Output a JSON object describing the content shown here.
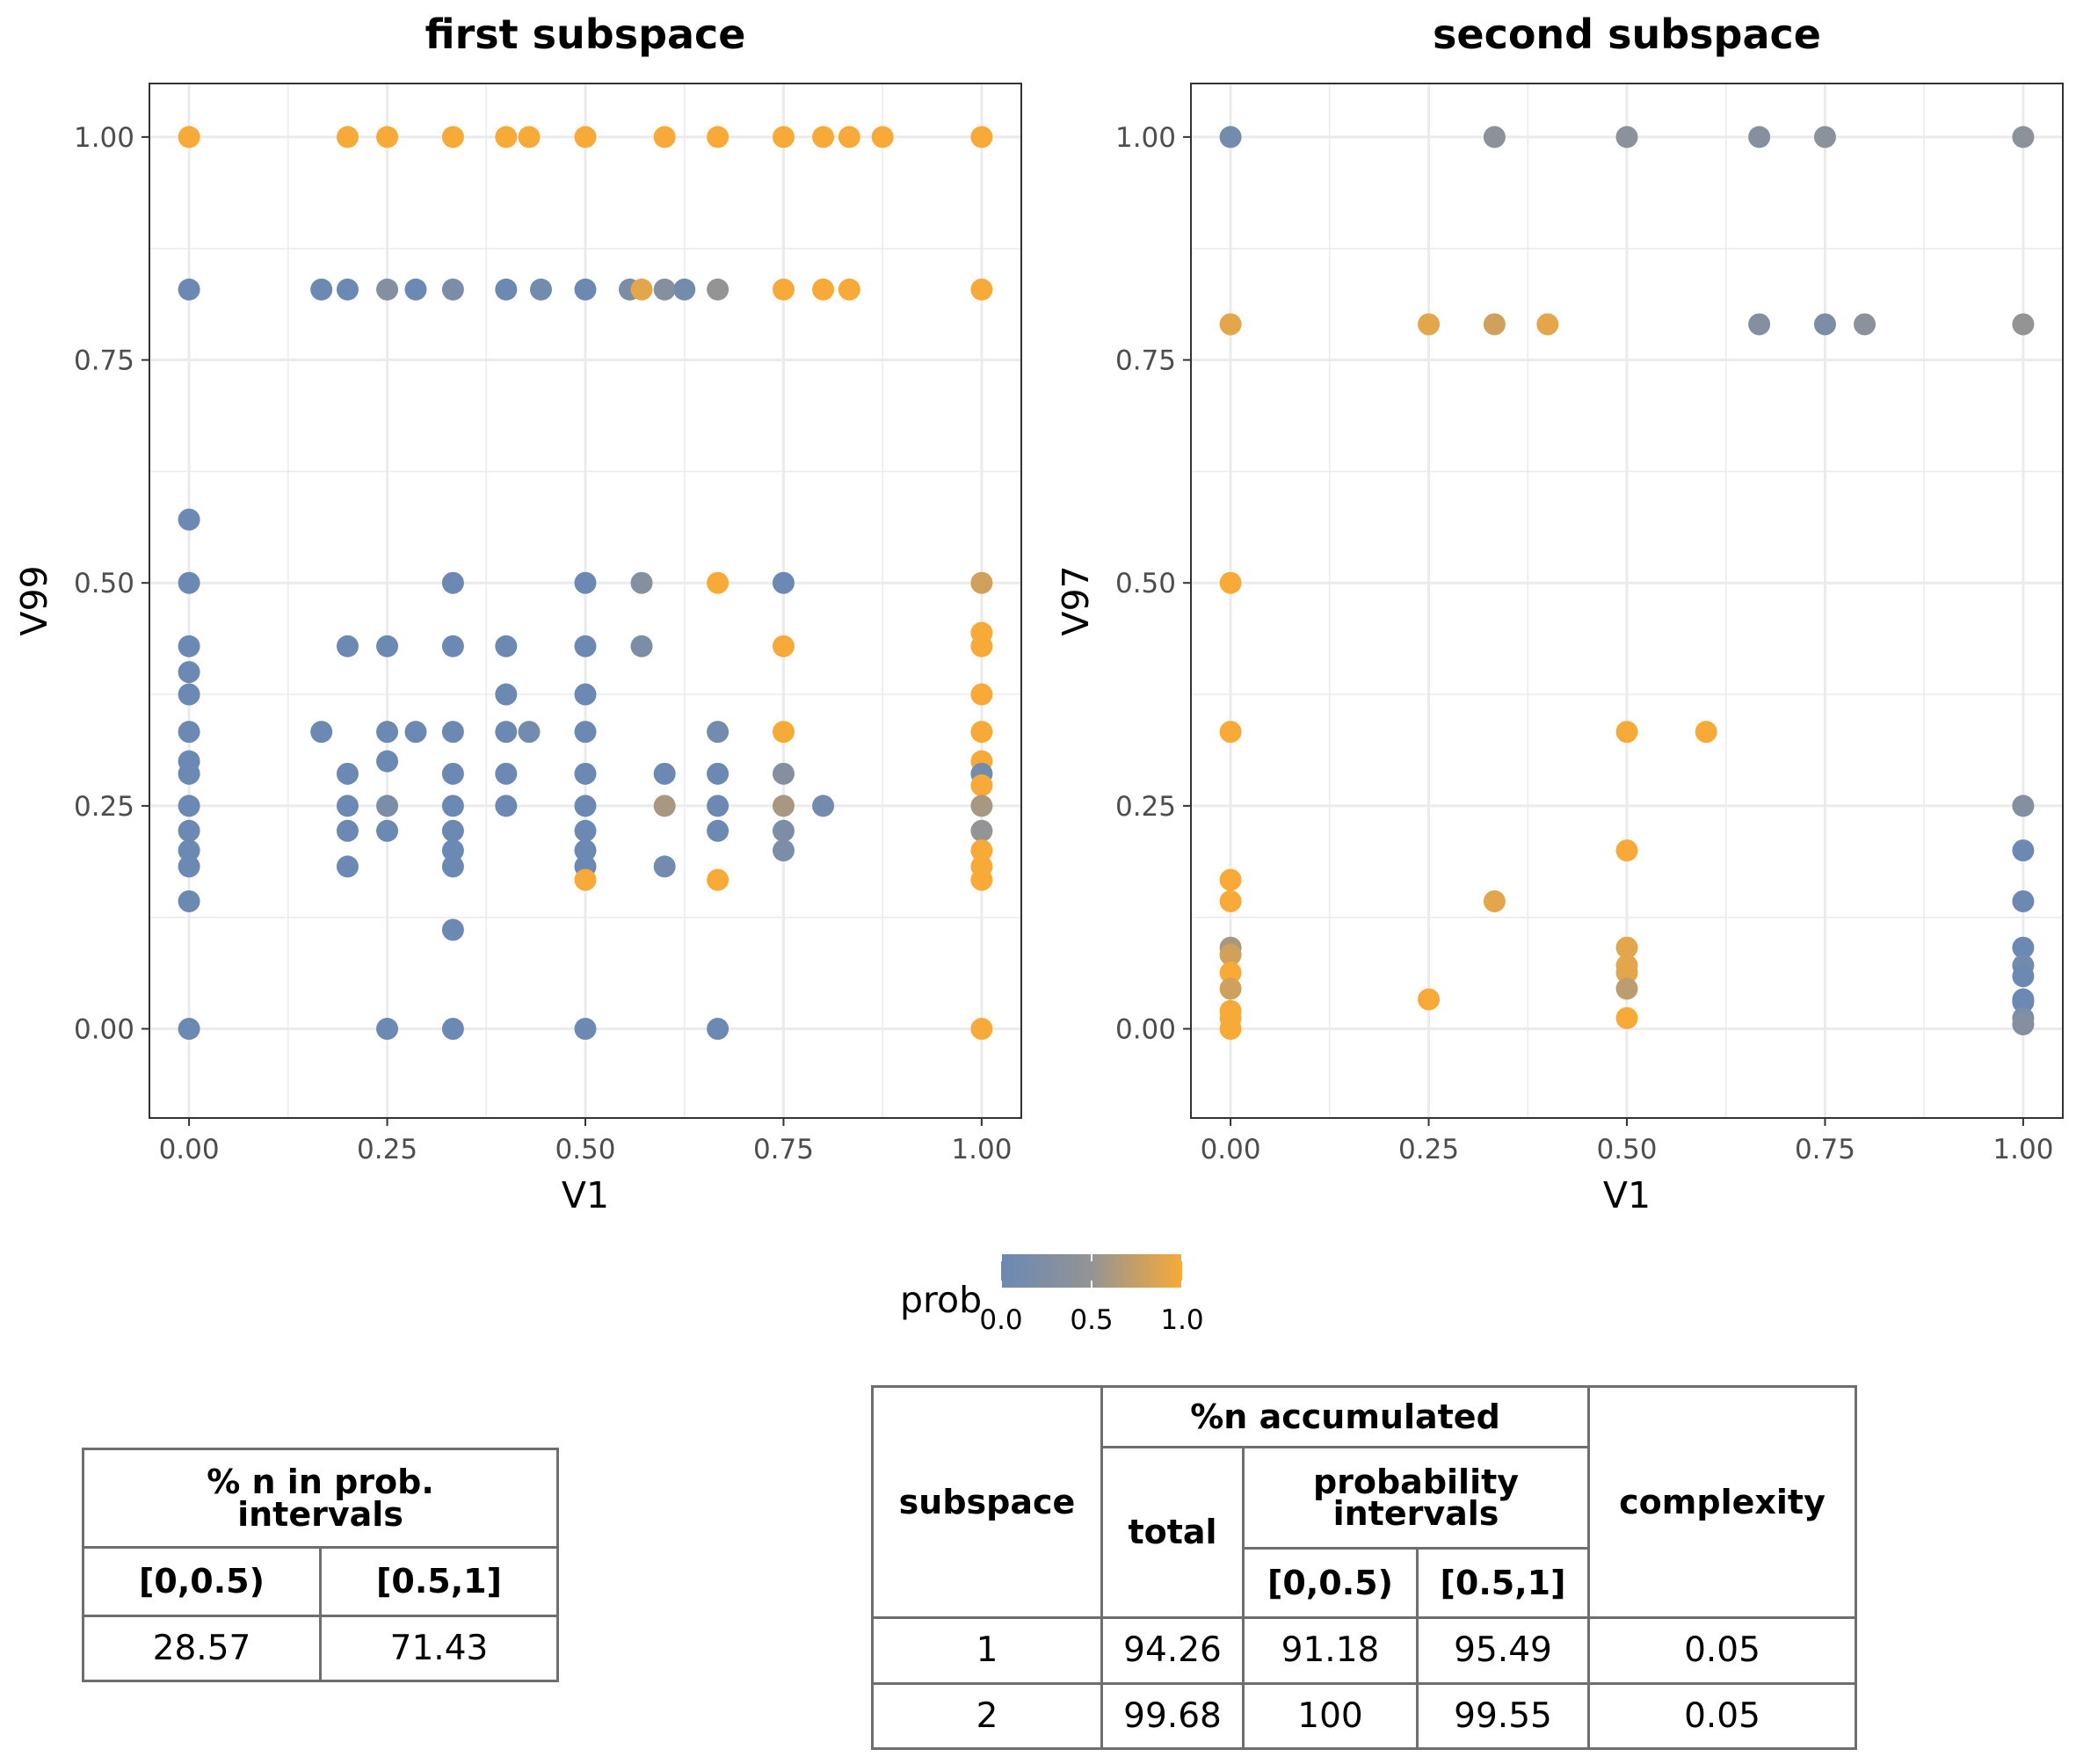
{
  "colors": {
    "low": "#6b89b3",
    "mid": "#949494",
    "high": "#f7aa38",
    "grid": "#ebebeb",
    "panel_border": "#333333",
    "table_line": "#6e6e6e"
  },
  "chart_data": [
    {
      "type": "scatter",
      "title": "first subspace",
      "xlabel": "V1",
      "ylabel": "V99",
      "xlim": [
        -0.05,
        1.05
      ],
      "ylim": [
        -0.1,
        1.06
      ],
      "xticks": [
        0,
        0.25,
        0.5,
        0.75,
        1
      ],
      "xtick_labels": [
        "0.00",
        "0.25",
        "0.50",
        "0.75",
        "1.00"
      ],
      "yticks": [
        0,
        0.25,
        0.5,
        0.75,
        1
      ],
      "ytick_labels": [
        "0.00",
        "0.25",
        "0.50",
        "0.75",
        "1.00"
      ],
      "grid": true,
      "color_variable": "prob",
      "points": [
        [
          0,
          1,
          1
        ],
        [
          0.2,
          1,
          1
        ],
        [
          0.25,
          1,
          1
        ],
        [
          0.333,
          1,
          1
        ],
        [
          0.4,
          1,
          1
        ],
        [
          0.429,
          1,
          1
        ],
        [
          0.5,
          1,
          1
        ],
        [
          0.6,
          1,
          1
        ],
        [
          0.667,
          1,
          1
        ],
        [
          0.75,
          1,
          1
        ],
        [
          0.8,
          1,
          1
        ],
        [
          0.833,
          1,
          1
        ],
        [
          0.875,
          1,
          1
        ],
        [
          1,
          1,
          1
        ],
        [
          0,
          0.829,
          0
        ],
        [
          0.167,
          0.829,
          0
        ],
        [
          0.2,
          0.829,
          0
        ],
        [
          0.25,
          0.829,
          0.3
        ],
        [
          0.286,
          0.829,
          0
        ],
        [
          0.333,
          0.829,
          0.2
        ],
        [
          0.4,
          0.829,
          0
        ],
        [
          0.444,
          0.829,
          0.1
        ],
        [
          0.5,
          0.829,
          0
        ],
        [
          0.556,
          0.829,
          0.2
        ],
        [
          0.571,
          0.829,
          0.9
        ],
        [
          0.6,
          0.829,
          0.3
        ],
        [
          0.625,
          0.829,
          0.1
        ],
        [
          0.667,
          0.829,
          0.5
        ],
        [
          0.75,
          0.829,
          1
        ],
        [
          0.8,
          0.829,
          1
        ],
        [
          0.833,
          0.829,
          1
        ],
        [
          1,
          0.829,
          1
        ],
        [
          0,
          0.571,
          0
        ],
        [
          0,
          0.5,
          0
        ],
        [
          0.333,
          0.5,
          0
        ],
        [
          0.5,
          0.5,
          0
        ],
        [
          0.571,
          0.5,
          0.3
        ],
        [
          0.667,
          0.5,
          1
        ],
        [
          0.75,
          0.5,
          0
        ],
        [
          1,
          0.5,
          0.8
        ],
        [
          1,
          0.444,
          1
        ],
        [
          0,
          0.429,
          0
        ],
        [
          0.2,
          0.429,
          0
        ],
        [
          0.25,
          0.429,
          0
        ],
        [
          0.333,
          0.429,
          0
        ],
        [
          0.4,
          0.429,
          0
        ],
        [
          0.5,
          0.429,
          0
        ],
        [
          0.571,
          0.429,
          0.2
        ],
        [
          0.75,
          0.429,
          1
        ],
        [
          1,
          0.429,
          1
        ],
        [
          0,
          0.4,
          0
        ],
        [
          0,
          0.375,
          0
        ],
        [
          0.4,
          0.375,
          0
        ],
        [
          0.5,
          0.375,
          0
        ],
        [
          1,
          0.375,
          1
        ],
        [
          0,
          0.333,
          0
        ],
        [
          0.167,
          0.333,
          0
        ],
        [
          0.25,
          0.333,
          0
        ],
        [
          0.286,
          0.333,
          0
        ],
        [
          0.333,
          0.333,
          0
        ],
        [
          0.4,
          0.333,
          0
        ],
        [
          0.429,
          0.333,
          0.1
        ],
        [
          0.5,
          0.333,
          0
        ],
        [
          0.667,
          0.333,
          0.1
        ],
        [
          0.75,
          0.333,
          1
        ],
        [
          1,
          0.333,
          1
        ],
        [
          0,
          0.3,
          0
        ],
        [
          0.25,
          0.3,
          0
        ],
        [
          1,
          0.3,
          1
        ],
        [
          0,
          0.286,
          0
        ],
        [
          0.2,
          0.286,
          0
        ],
        [
          0.333,
          0.286,
          0
        ],
        [
          0.4,
          0.286,
          0
        ],
        [
          0.5,
          0.286,
          0
        ],
        [
          0.6,
          0.286,
          0
        ],
        [
          0.667,
          0.286,
          0
        ],
        [
          0.75,
          0.286,
          0.3
        ],
        [
          1,
          0.286,
          0.1
        ],
        [
          1,
          0.273,
          1
        ],
        [
          0,
          0.25,
          0
        ],
        [
          0.2,
          0.25,
          0
        ],
        [
          0.25,
          0.25,
          0.2
        ],
        [
          0.333,
          0.25,
          0
        ],
        [
          0.4,
          0.25,
          0
        ],
        [
          0.5,
          0.25,
          0
        ],
        [
          0.6,
          0.25,
          0.6
        ],
        [
          0.667,
          0.25,
          0
        ],
        [
          0.75,
          0.25,
          0.6
        ],
        [
          0.8,
          0.25,
          0.1
        ],
        [
          1,
          0.25,
          0.6
        ],
        [
          0,
          0.222,
          0
        ],
        [
          0.2,
          0.222,
          0
        ],
        [
          0.25,
          0.222,
          0
        ],
        [
          0.333,
          0.222,
          0
        ],
        [
          0.5,
          0.222,
          0
        ],
        [
          0.667,
          0.222,
          0
        ],
        [
          0.75,
          0.222,
          0.2
        ],
        [
          1,
          0.222,
          0.5
        ],
        [
          0,
          0.2,
          0
        ],
        [
          0.333,
          0.2,
          0
        ],
        [
          0.5,
          0.2,
          0
        ],
        [
          0.75,
          0.2,
          0.2
        ],
        [
          1,
          0.2,
          1
        ],
        [
          0,
          0.182,
          0
        ],
        [
          0.2,
          0.182,
          0
        ],
        [
          0.333,
          0.182,
          0
        ],
        [
          0.5,
          0.182,
          0
        ],
        [
          0.6,
          0.182,
          0.1
        ],
        [
          1,
          0.182,
          1
        ],
        [
          0.5,
          0.167,
          1
        ],
        [
          0.667,
          0.167,
          1
        ],
        [
          1,
          0.167,
          1
        ],
        [
          0,
          0.143,
          0
        ],
        [
          0.333,
          0.111,
          0
        ],
        [
          0,
          0,
          0
        ],
        [
          0.25,
          0,
          0
        ],
        [
          0.333,
          0,
          0
        ],
        [
          0.5,
          0,
          0
        ],
        [
          0.667,
          0,
          0
        ],
        [
          1,
          0,
          1
        ]
      ]
    },
    {
      "type": "scatter",
      "title": "second subspace",
      "xlabel": "V1",
      "ylabel": "V97",
      "xlim": [
        -0.05,
        1.05
      ],
      "ylim": [
        -0.1,
        1.06
      ],
      "xticks": [
        0,
        0.25,
        0.5,
        0.75,
        1
      ],
      "xtick_labels": [
        "0.00",
        "0.25",
        "0.50",
        "0.75",
        "1.00"
      ],
      "yticks": [
        0,
        0.25,
        0.5,
        0.75,
        1
      ],
      "ytick_labels": [
        "0.00",
        "0.25",
        "0.50",
        "0.75",
        "1.00"
      ],
      "grid": true,
      "color_variable": "prob",
      "points": [
        [
          0,
          1,
          0.1
        ],
        [
          0.333,
          1,
          0.4
        ],
        [
          0.5,
          1,
          0.4
        ],
        [
          0.667,
          1,
          0.3
        ],
        [
          0.75,
          1,
          0.4
        ],
        [
          1,
          1,
          0.4
        ],
        [
          0,
          0.79,
          0.9
        ],
        [
          0.25,
          0.79,
          0.9
        ],
        [
          0.333,
          0.79,
          0.8
        ],
        [
          0.4,
          0.79,
          0.9
        ],
        [
          0.667,
          0.79,
          0.3
        ],
        [
          0.75,
          0.79,
          0.2
        ],
        [
          0.8,
          0.79,
          0.4
        ],
        [
          1,
          0.79,
          0.5
        ],
        [
          0,
          0.5,
          1
        ],
        [
          0,
          0.333,
          1
        ],
        [
          0.5,
          0.333,
          1
        ],
        [
          0.6,
          0.333,
          1
        ],
        [
          1,
          0.25,
          0.3
        ],
        [
          0.5,
          0.2,
          1
        ],
        [
          1,
          0.2,
          0
        ],
        [
          0,
          0.167,
          1
        ],
        [
          0,
          0.143,
          1
        ],
        [
          0.333,
          0.143,
          0.9
        ],
        [
          1,
          0.143,
          0
        ],
        [
          0,
          0.091,
          0.6
        ],
        [
          0.5,
          0.091,
          0.9
        ],
        [
          1,
          0.091,
          0
        ],
        [
          0,
          0.083,
          0.8
        ],
        [
          0.5,
          0.071,
          0.9
        ],
        [
          1,
          0.071,
          0.1
        ],
        [
          0,
          0.063,
          1
        ],
        [
          0.5,
          0.063,
          0.9
        ],
        [
          1,
          0.059,
          0
        ],
        [
          0,
          0.045,
          0.8
        ],
        [
          0.5,
          0.045,
          0.7
        ],
        [
          0.25,
          0.033,
          1
        ],
        [
          1,
          0.033,
          0
        ],
        [
          1,
          0.03,
          0
        ],
        [
          0,
          0.02,
          1
        ],
        [
          0.5,
          0.012,
          1
        ],
        [
          0,
          0.012,
          1
        ],
        [
          1,
          0.012,
          0.2
        ],
        [
          1,
          0.005,
          0.3
        ],
        [
          0,
          0,
          1
        ]
      ]
    }
  ],
  "legend": {
    "title": "prob",
    "ticks": [
      0,
      0.5,
      1
    ],
    "tick_labels": [
      "0.0",
      "0.5",
      "1.0"
    ]
  },
  "table1": {
    "header": "% n in prob.\nintervals",
    "col1": "[0,0.5)",
    "col2": "[0.5,1]",
    "val1": "28.57",
    "val2": "71.43"
  },
  "table2": {
    "subspace_header": "subspace",
    "accumulated_header": "%n accumulated",
    "total_header": "total",
    "prob_intervals_header": "probability\nintervals",
    "col_low": "[0,0.5)",
    "col_high": "[0.5,1]",
    "complexity_header": "complexity",
    "rows": [
      {
        "subspace": "1",
        "total": "94.26",
        "low": "91.18",
        "high": "95.49",
        "complexity": "0.05"
      },
      {
        "subspace": "2",
        "total": "99.68",
        "low": "100",
        "high": "99.55",
        "complexity": "0.05"
      }
    ]
  }
}
